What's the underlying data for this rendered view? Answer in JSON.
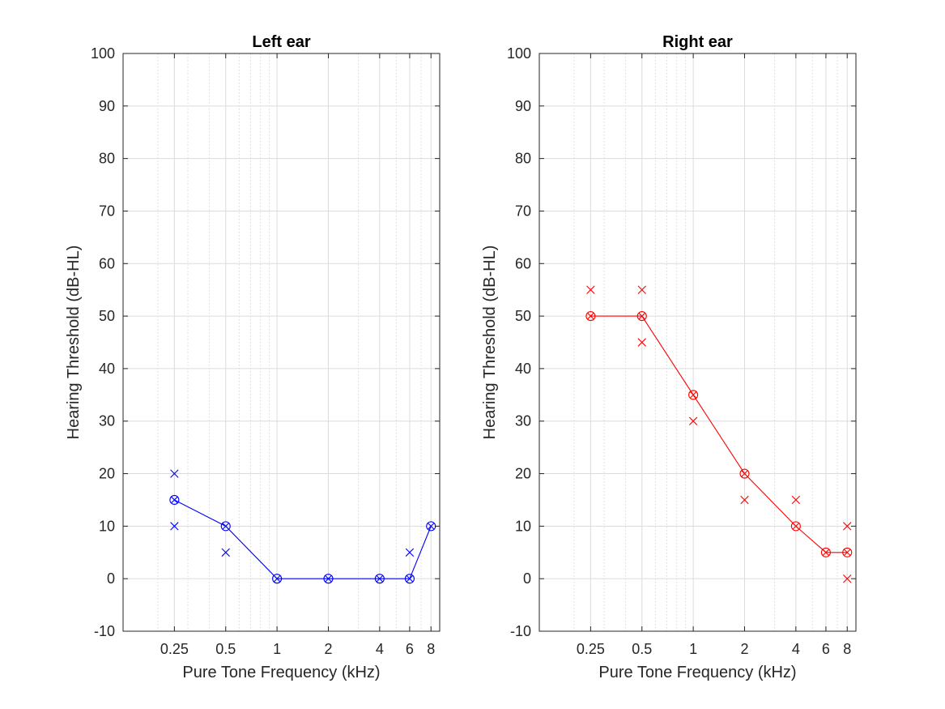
{
  "chart_data": [
    {
      "type": "line",
      "title": "Left ear",
      "xlabel": "Pure Tone Frequency (kHz)",
      "ylabel": "Hearing Threshold (dB-HL)",
      "x_scale": "log",
      "xlim": [
        0.125,
        9
      ],
      "ylim": [
        -10,
        100
      ],
      "x_ticks": [
        0.25,
        0.5,
        1,
        2,
        4,
        6,
        8
      ],
      "x_tick_labels": [
        "0.25",
        "0.5",
        "1",
        "2",
        "4",
        "6",
        "8"
      ],
      "y_ticks": [
        -10,
        0,
        10,
        20,
        30,
        40,
        50,
        60,
        70,
        80,
        90,
        100
      ],
      "y_tick_labels": [
        "-10",
        "0",
        "10",
        "20",
        "30",
        "40",
        "50",
        "60",
        "70",
        "80",
        "90",
        "100"
      ],
      "grid": true,
      "color": "#0000ff",
      "series": [
        {
          "marker": "circle-x",
          "line": true,
          "x": [
            0.25,
            0.5,
            1,
            2,
            4,
            6,
            8
          ],
          "y": [
            15,
            10,
            0,
            0,
            0,
            0,
            10
          ]
        },
        {
          "marker": "x",
          "line": false,
          "x": [
            0.25,
            0.25,
            0.5,
            6
          ],
          "y": [
            20,
            10,
            5,
            5
          ]
        }
      ]
    },
    {
      "type": "line",
      "title": "Right ear",
      "xlabel": "Pure Tone Frequency (kHz)",
      "ylabel": "Hearing Threshold (dB-HL)",
      "x_scale": "log",
      "xlim": [
        0.125,
        9
      ],
      "ylim": [
        -10,
        100
      ],
      "x_ticks": [
        0.25,
        0.5,
        1,
        2,
        4,
        6,
        8
      ],
      "x_tick_labels": [
        "0.25",
        "0.5",
        "1",
        "2",
        "4",
        "6",
        "8"
      ],
      "y_ticks": [
        -10,
        0,
        10,
        20,
        30,
        40,
        50,
        60,
        70,
        80,
        90,
        100
      ],
      "y_tick_labels": [
        "-10",
        "0",
        "10",
        "20",
        "30",
        "40",
        "50",
        "60",
        "70",
        "80",
        "90",
        "100"
      ],
      "grid": true,
      "color": "#ff0000",
      "series": [
        {
          "marker": "circle-x",
          "line": true,
          "x": [
            0.25,
            0.5,
            1,
            2,
            4,
            6,
            8
          ],
          "y": [
            50,
            50,
            35,
            20,
            10,
            5,
            5
          ]
        },
        {
          "marker": "x",
          "line": false,
          "x": [
            0.25,
            0.5,
            0.5,
            1,
            2,
            4,
            8,
            8
          ],
          "y": [
            55,
            55,
            45,
            30,
            15,
            15,
            10,
            0
          ]
        }
      ]
    }
  ]
}
